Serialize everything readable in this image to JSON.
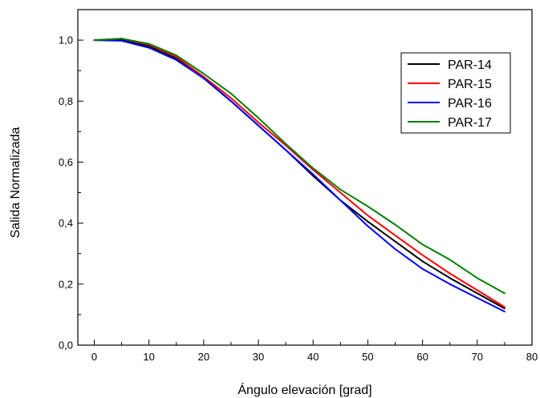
{
  "chart_data": {
    "type": "line",
    "title": "",
    "xlabel": "Ángulo elevación [grad]",
    "ylabel": "Salida Normalizada",
    "xlim": [
      -3,
      80
    ],
    "ylim": [
      0,
      1.1
    ],
    "xticks": [
      0,
      10,
      20,
      30,
      40,
      50,
      60,
      70,
      80
    ],
    "xtick_labels": [
      "0",
      "10",
      "20",
      "30",
      "40",
      "50",
      "60",
      "70",
      "80"
    ],
    "yticks": [
      0,
      0.2,
      0.4,
      0.6,
      0.8,
      1.0
    ],
    "ytick_labels": [
      "0,0",
      "0,2",
      "0,4",
      "0,6",
      "0,8",
      "1,0"
    ],
    "grid": false,
    "legend_position": "top-right",
    "series": [
      {
        "name": "PAR-14",
        "color": "#000000",
        "x": [
          0,
          5,
          10,
          15,
          20,
          25,
          30,
          35,
          40,
          45,
          50,
          55,
          60,
          65,
          70,
          75
        ],
        "y": [
          1.0,
          1.0,
          0.98,
          0.94,
          0.875,
          0.8,
          0.72,
          0.64,
          0.555,
          0.475,
          0.405,
          0.34,
          0.275,
          0.22,
          0.17,
          0.12
        ]
      },
      {
        "name": "PAR-15",
        "color": "#ff0000",
        "x": [
          0,
          5,
          10,
          15,
          20,
          25,
          30,
          35,
          40,
          45,
          50,
          55,
          60,
          65,
          70,
          75
        ],
        "y": [
          1.0,
          1.005,
          0.985,
          0.945,
          0.88,
          0.81,
          0.73,
          0.655,
          0.575,
          0.5,
          0.425,
          0.36,
          0.295,
          0.235,
          0.18,
          0.125
        ]
      },
      {
        "name": "PAR-16",
        "color": "#0000ff",
        "x": [
          0,
          5,
          10,
          15,
          20,
          25,
          30,
          35,
          40,
          45,
          50,
          55,
          60,
          65,
          70,
          75
        ],
        "y": [
          1.0,
          0.998,
          0.975,
          0.935,
          0.875,
          0.8,
          0.72,
          0.64,
          0.56,
          0.475,
          0.39,
          0.315,
          0.25,
          0.2,
          0.155,
          0.11
        ]
      },
      {
        "name": "PAR-17",
        "color": "#008000",
        "x": [
          0,
          5,
          10,
          15,
          20,
          25,
          30,
          35,
          40,
          45,
          50,
          55,
          60,
          65,
          70,
          75
        ],
        "y": [
          1.0,
          1.005,
          0.988,
          0.95,
          0.89,
          0.825,
          0.745,
          0.66,
          0.58,
          0.51,
          0.455,
          0.395,
          0.33,
          0.28,
          0.22,
          0.17
        ]
      }
    ]
  }
}
